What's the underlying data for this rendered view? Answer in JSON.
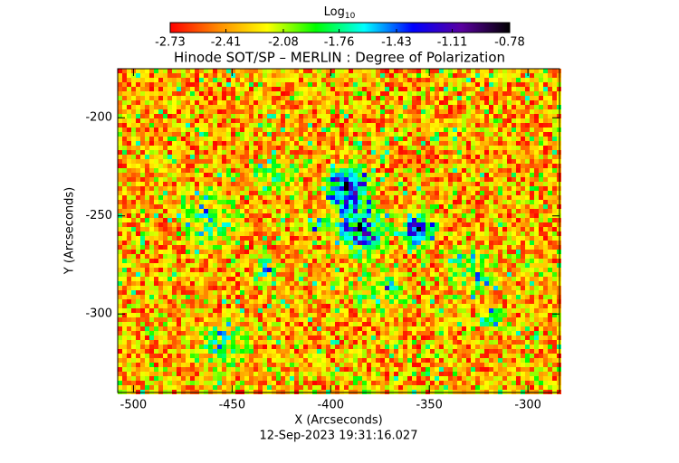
{
  "chart_data": {
    "type": "image",
    "title": "Hinode SOT/SP – MERLIN : Degree of Polarization",
    "colorbar_label": "Log",
    "colorbar_label_sub": "10",
    "clim": [
      -2.73,
      -0.78
    ],
    "cticks": [
      -2.73,
      -2.41,
      -2.08,
      -1.76,
      -1.43,
      -1.11,
      -0.78
    ],
    "colormap": [
      "#ff0000",
      "#ff8c00",
      "#ffff00",
      "#00ff00",
      "#00ffff",
      "#0000ff",
      "#5a00a0",
      "#000000"
    ],
    "xlabel": "X (Arcseconds)",
    "ylabel": "Y (Arcseconds)",
    "xlim": [
      -508,
      -284
    ],
    "ylim": [
      -340,
      -175
    ],
    "xticks": [
      -500,
      -450,
      -400,
      -350,
      -300
    ],
    "yticks": [
      -300,
      -250,
      -200
    ],
    "timestamp": "12-Sep-2023 19:31:16.027"
  }
}
